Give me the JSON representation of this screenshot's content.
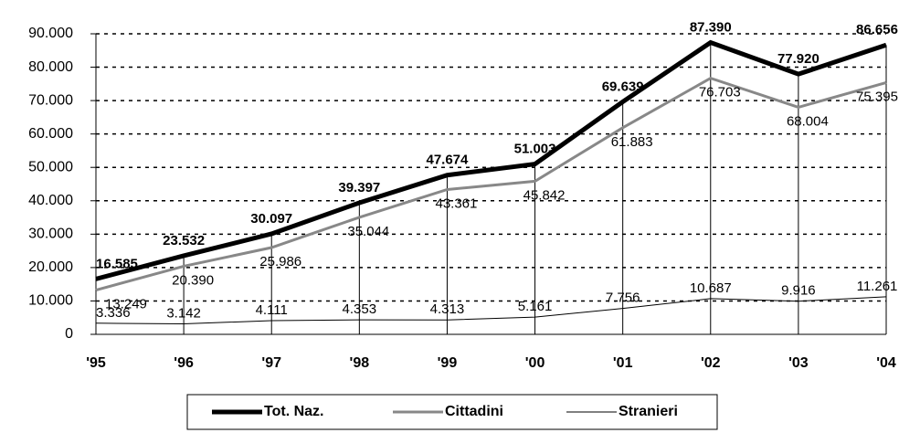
{
  "chart_data": {
    "type": "line",
    "categories": [
      "'95",
      "'96",
      "'97",
      "'98",
      "'99",
      "'00",
      "'01",
      "'02",
      "'03",
      "'04"
    ],
    "series": [
      {
        "name": "Tot. Naz.",
        "color": "#000000",
        "line_width": 5,
        "values": [
          16585,
          23532,
          30097,
          39397,
          47674,
          51003,
          69639,
          87390,
          77920,
          86656
        ],
        "value_labels": [
          "16.585",
          "23.532",
          "30.097",
          "39.397",
          "47.674",
          "51.003",
          "69.639",
          "87.390",
          "77.920",
          "86.656"
        ]
      },
      {
        "name": "Cittadini",
        "color": "#888888",
        "line_width": 3,
        "values": [
          13249,
          20390,
          25986,
          35044,
          43361,
          45842,
          61883,
          76703,
          68004,
          75395
        ],
        "value_labels": [
          "13.249",
          "20.390",
          "25.986",
          "35.044",
          "43.361",
          "45.842",
          "61.883",
          "76.703",
          "68.004",
          "75.395"
        ]
      },
      {
        "name": "Stranieri",
        "color": "#000000",
        "line_width": 1,
        "values": [
          3336,
          3142,
          4111,
          4353,
          4313,
          5161,
          7756,
          10687,
          9916,
          11261
        ],
        "value_labels": [
          "3.336",
          "3.142",
          "4.111",
          "4.353",
          "4.313",
          "5.161",
          "7.756",
          "10.687",
          "9.916",
          "11.261"
        ]
      }
    ],
    "ylim": [
      0,
      90000
    ],
    "yticks": [
      0,
      {
        "value": 10000,
        "label": "10.000"
      },
      {
        "value": 20000,
        "label": "20.000"
      },
      {
        "value": 30000,
        "label": "30.000"
      },
      {
        "value": 40000,
        "label": "40.000"
      },
      {
        "value": 50000,
        "label": "50.000"
      },
      {
        "value": 60000,
        "label": "60.000"
      },
      {
        "value": 70000,
        "label": "70.000"
      },
      {
        "value": 80000,
        "label": "80.000"
      },
      {
        "value": 90000,
        "label": "90.000"
      }
    ],
    "grid": true,
    "legend": "bottom"
  }
}
